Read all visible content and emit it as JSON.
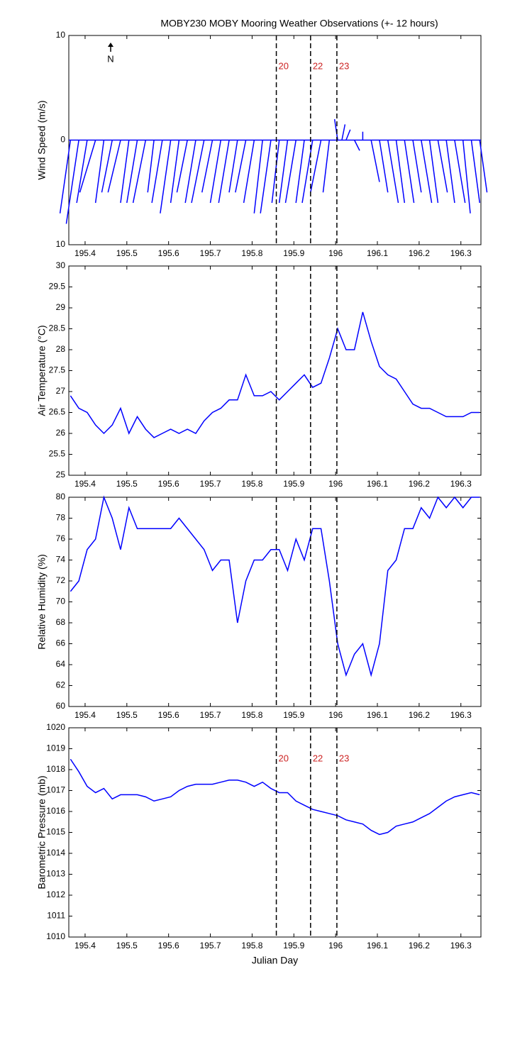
{
  "chart_data": [
    {
      "type": "stick",
      "title": "MOBY230 MOBY Mooring Weather Observations (+- 12 hours)",
      "y_label": "Wind Speed (m/s)",
      "north_label": "N",
      "color": "#0000ff",
      "xlim": [
        195.361,
        196.348
      ],
      "xticks": [
        195.4,
        195.5,
        195.6,
        195.7,
        195.8,
        195.9,
        196,
        196.1,
        196.2,
        196.3
      ],
      "ylim": [
        -10,
        10
      ],
      "yticks": [
        {
          "value": -10,
          "label": "10"
        },
        0,
        10
      ],
      "vlines": [
        195.858,
        195.94,
        196.003
      ],
      "vline_labels": [
        "20",
        "22",
        "23"
      ],
      "x": [
        195.365,
        195.385,
        195.405,
        195.425,
        195.445,
        195.465,
        195.485,
        195.505,
        195.525,
        195.545,
        195.565,
        195.585,
        195.605,
        195.625,
        195.645,
        195.665,
        195.685,
        195.705,
        195.725,
        195.745,
        195.765,
        195.785,
        195.805,
        195.825,
        195.845,
        195.865,
        195.885,
        195.905,
        195.925,
        195.945,
        195.965,
        195.985,
        196.005,
        196.015,
        196.025,
        196.045,
        196.065,
        196.085,
        196.105,
        196.125,
        196.145,
        196.165,
        196.185,
        196.205,
        196.225,
        196.245,
        196.265,
        196.285,
        196.305,
        196.325,
        196.345
      ],
      "v": [
        -7,
        -8,
        -6,
        -5,
        -6,
        -5,
        -5,
        -6,
        -6,
        -6,
        -5,
        -6,
        -7,
        -6,
        -5,
        -6,
        -6,
        -5,
        -6,
        -6,
        -5,
        -5,
        -6,
        -7,
        -7,
        -6,
        -6,
        -6,
        -6,
        -6,
        -5,
        -5,
        2,
        1.5,
        1,
        -1,
        0.8,
        -4,
        -5,
        -6,
        -6,
        -6,
        -5,
        -6,
        -6,
        -5,
        -6,
        -6,
        -7,
        -6,
        -5
      ],
      "u": [
        -1,
        -1.2,
        -1,
        -1.5,
        -0.8,
        -1,
        -1.2,
        -0.8,
        -1,
        -1.2,
        -0.6,
        -1,
        -1,
        -0.8,
        -1,
        -1,
        -1.2,
        -1,
        -1,
        -1,
        -0.8,
        -1,
        -1,
        -0.8,
        -1,
        -0.7,
        -0.8,
        -1,
        -0.8,
        -1,
        -1,
        -0.6,
        -0.3,
        0.3,
        0.4,
        0.5,
        0,
        0.8,
        0.8,
        1,
        0.8,
        0.9,
        0.8,
        1,
        0.8,
        0.9,
        0.8,
        1,
        0.7,
        0.8,
        0.7
      ]
    },
    {
      "type": "line",
      "y_label": "Air Temperature (°C)",
      "color": "#0000ff",
      "xlim": [
        195.361,
        196.348
      ],
      "xticks": [
        195.4,
        195.5,
        195.6,
        195.7,
        195.8,
        195.9,
        196,
        196.1,
        196.2,
        196.3
      ],
      "ylim": [
        25,
        30
      ],
      "yticks": [
        25,
        25.5,
        26,
        26.5,
        27,
        27.5,
        28,
        28.5,
        29,
        29.5,
        30
      ],
      "vlines": [
        195.858,
        195.94,
        196.003
      ],
      "x": [
        195.365,
        195.385,
        195.405,
        195.425,
        195.445,
        195.465,
        195.485,
        195.505,
        195.525,
        195.545,
        195.565,
        195.585,
        195.605,
        195.625,
        195.645,
        195.665,
        195.685,
        195.705,
        195.725,
        195.745,
        195.765,
        195.785,
        195.805,
        195.825,
        195.845,
        195.865,
        195.885,
        195.905,
        195.925,
        195.945,
        195.965,
        195.985,
        196.005,
        196.025,
        196.045,
        196.065,
        196.085,
        196.105,
        196.125,
        196.145,
        196.165,
        196.185,
        196.205,
        196.225,
        196.245,
        196.265,
        196.285,
        196.305,
        196.325,
        196.345
      ],
      "values": [
        26.9,
        26.6,
        26.5,
        26.2,
        26.0,
        26.2,
        26.6,
        26.0,
        26.4,
        26.1,
        25.9,
        26.0,
        26.1,
        26.0,
        26.1,
        26.0,
        26.3,
        26.5,
        26.6,
        26.8,
        26.8,
        27.4,
        26.9,
        26.9,
        27.0,
        26.8,
        27.0,
        27.2,
        27.4,
        27.1,
        27.2,
        27.8,
        28.5,
        28.0,
        28.0,
        28.9,
        28.2,
        27.6,
        27.4,
        27.3,
        27.0,
        26.7,
        26.6,
        26.6,
        26.5,
        26.4,
        26.4,
        26.4,
        26.5,
        26.5
      ]
    },
    {
      "type": "line",
      "y_label": "Relative Humidity (%)",
      "color": "#0000ff",
      "xlim": [
        195.361,
        196.348
      ],
      "xticks": [
        195.4,
        195.5,
        195.6,
        195.7,
        195.8,
        195.9,
        196,
        196.1,
        196.2,
        196.3
      ],
      "ylim": [
        60,
        80
      ],
      "yticks": [
        60,
        62,
        64,
        66,
        68,
        70,
        72,
        74,
        76,
        78,
        80
      ],
      "vlines": [
        195.858,
        195.94,
        196.003
      ],
      "x": [
        195.365,
        195.385,
        195.405,
        195.425,
        195.445,
        195.465,
        195.485,
        195.505,
        195.525,
        195.545,
        195.565,
        195.585,
        195.605,
        195.625,
        195.645,
        195.665,
        195.685,
        195.705,
        195.725,
        195.745,
        195.765,
        195.785,
        195.805,
        195.825,
        195.845,
        195.865,
        195.885,
        195.905,
        195.925,
        195.945,
        195.965,
        195.985,
        196.005,
        196.025,
        196.045,
        196.065,
        196.085,
        196.105,
        196.125,
        196.145,
        196.165,
        196.185,
        196.205,
        196.225,
        196.245,
        196.265,
        196.285,
        196.305,
        196.325,
        196.345
      ],
      "values": [
        71,
        72,
        75,
        76,
        80,
        78,
        75,
        79,
        77,
        77,
        77,
        77,
        77,
        78,
        77,
        76,
        75,
        73,
        74,
        74,
        68,
        72,
        74,
        74,
        75,
        75,
        73,
        76,
        74,
        77,
        77,
        72,
        66,
        63,
        65,
        66,
        63,
        66,
        73,
        74,
        77,
        77,
        79,
        78,
        80,
        79,
        80,
        79,
        80,
        80
      ]
    },
    {
      "type": "line",
      "y_label": "Barometric Pressure (mb)",
      "x_label": "Julian Day",
      "color": "#0000ff",
      "xlim": [
        195.361,
        196.348
      ],
      "xticks": [
        195.4,
        195.5,
        195.6,
        195.7,
        195.8,
        195.9,
        196,
        196.1,
        196.2,
        196.3
      ],
      "ylim": [
        1010,
        1020
      ],
      "yticks": [
        1010,
        1011,
        1012,
        1013,
        1014,
        1015,
        1016,
        1017,
        1018,
        1019,
        1020
      ],
      "vlines": [
        195.858,
        195.94,
        196.003
      ],
      "vline_labels": [
        "20",
        "22",
        "23"
      ],
      "x": [
        195.365,
        195.385,
        195.405,
        195.425,
        195.445,
        195.465,
        195.485,
        195.505,
        195.525,
        195.545,
        195.565,
        195.585,
        195.605,
        195.625,
        195.645,
        195.665,
        195.685,
        195.705,
        195.725,
        195.745,
        195.765,
        195.785,
        195.805,
        195.825,
        195.845,
        195.865,
        195.885,
        195.905,
        195.925,
        195.945,
        195.965,
        195.985,
        196.005,
        196.025,
        196.045,
        196.065,
        196.085,
        196.105,
        196.125,
        196.145,
        196.165,
        196.185,
        196.205,
        196.225,
        196.245,
        196.265,
        196.285,
        196.305,
        196.325,
        196.345
      ],
      "values": [
        1018.5,
        1017.9,
        1017.2,
        1016.9,
        1017.1,
        1016.6,
        1016.8,
        1016.8,
        1016.8,
        1016.7,
        1016.5,
        1016.6,
        1016.7,
        1017.0,
        1017.2,
        1017.3,
        1017.3,
        1017.3,
        1017.4,
        1017.5,
        1017.5,
        1017.4,
        1017.2,
        1017.4,
        1017.1,
        1016.9,
        1016.9,
        1016.5,
        1016.3,
        1016.1,
        1016.0,
        1015.9,
        1015.8,
        1015.6,
        1015.5,
        1015.4,
        1015.1,
        1014.9,
        1015.0,
        1015.3,
        1015.4,
        1015.5,
        1015.7,
        1015.9,
        1016.2,
        1016.5,
        1016.7,
        1016.8,
        1016.9,
        1016.8
      ]
    }
  ]
}
